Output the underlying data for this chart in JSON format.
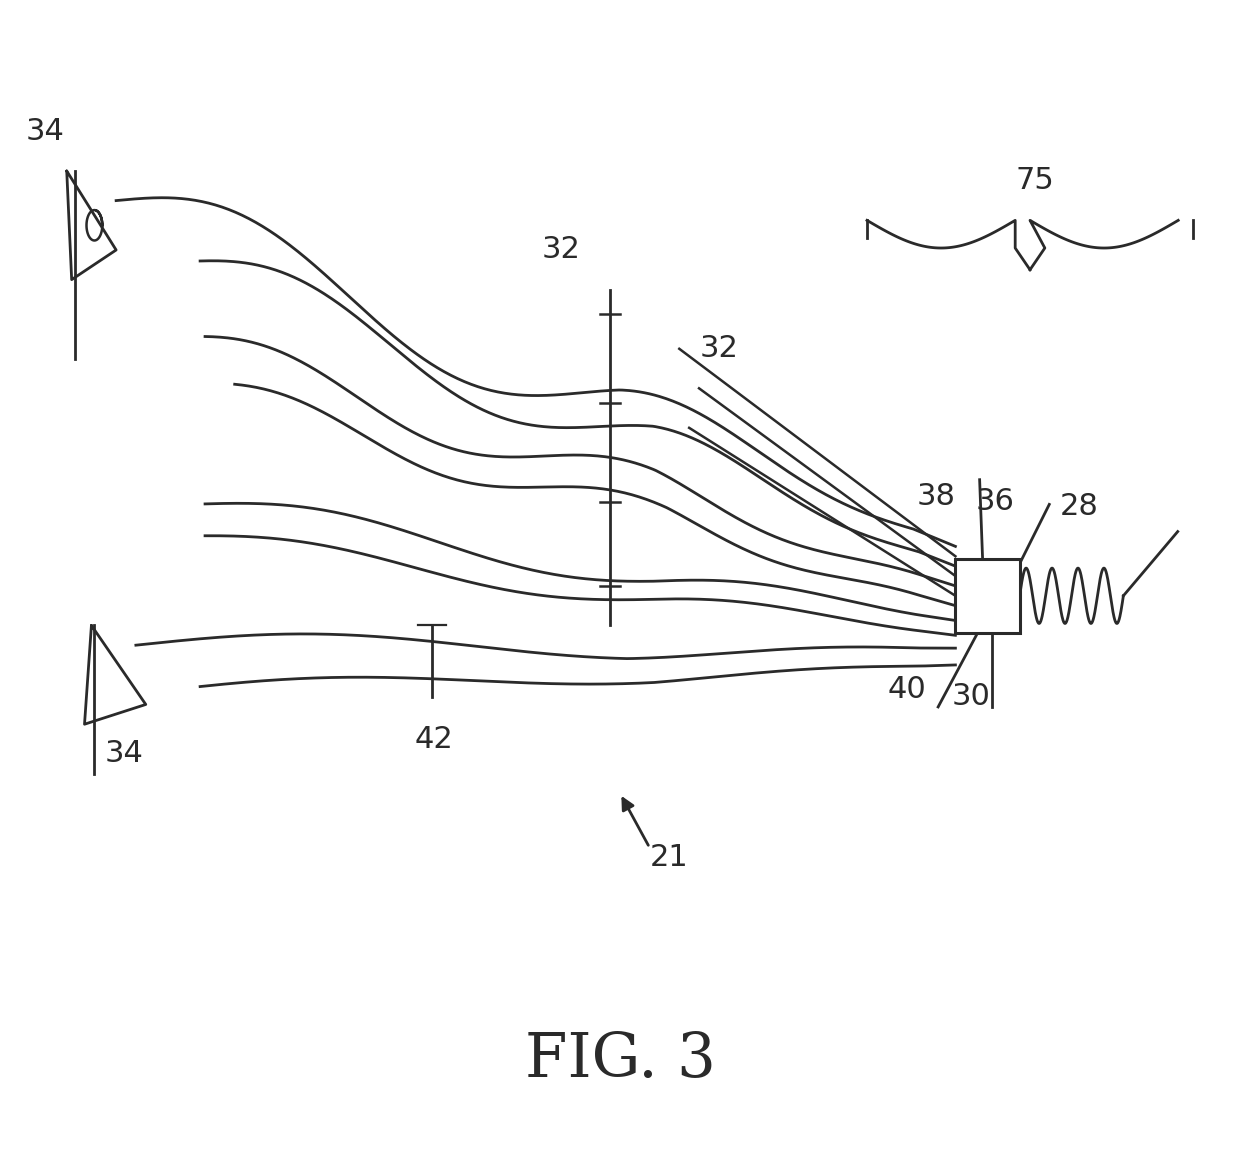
{
  "bg_color": "#ffffff",
  "line_color": "#2a2a2a",
  "line_width": 2.0,
  "fig_width": 12.4,
  "fig_height": 11.56,
  "title": "FIG. 3"
}
